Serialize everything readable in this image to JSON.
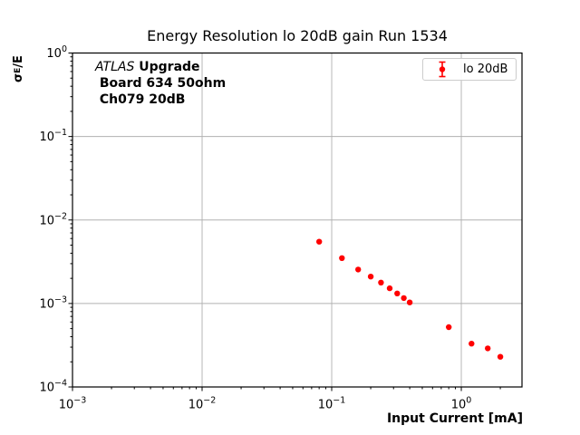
{
  "chart_data": {
    "type": "scatter",
    "style": "errorbar-dots",
    "title": "Energy Resolution lo 20dB gain Run 1534",
    "xlabel": "Input Current [mA]",
    "ylabel": "σE/E",
    "ylabel_parts": {
      "base": "σ",
      "sub": "E",
      "rest": "/E"
    },
    "annotation": {
      "brand": "ATLAS",
      "brand_suffix": " Upgrade",
      "line2": " Board 634 50ohm",
      "line3": " Ch079 20dB"
    },
    "legend": {
      "label": "lo 20dB",
      "position": "upper right"
    },
    "xscale": "log",
    "yscale": "log",
    "xlim": [
      0.001,
      2.94
    ],
    "ylim": [
      0.0001,
      1.0
    ],
    "x_tick_exponents": [
      -3,
      -2,
      -1,
      0
    ],
    "y_tick_exponents": [
      0,
      -1,
      -2,
      -3,
      -4
    ],
    "grid": true,
    "grid_color": "#b0b0b0",
    "series": [
      {
        "name": "lo 20dB",
        "color": "#ff0000",
        "marker": "circle",
        "x": [
          0.08,
          0.12,
          0.16,
          0.2,
          0.24,
          0.28,
          0.32,
          0.36,
          0.4,
          0.8,
          1.2,
          1.6,
          2.0
        ],
        "y": [
          0.0055,
          0.0035,
          0.00255,
          0.0021,
          0.00178,
          0.00152,
          0.00132,
          0.00116,
          0.00103,
          0.00052,
          0.00033,
          0.00029,
          0.00023
        ]
      }
    ]
  }
}
